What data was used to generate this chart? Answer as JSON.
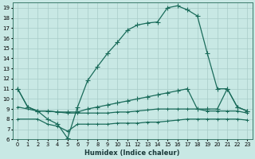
{
  "xlabel": "Humidex (Indice chaleur)",
  "ylabel": "",
  "background_color": "#c8e8e4",
  "grid_color": "#a8ccc8",
  "line_color": "#1a6b5a",
  "xlim": [
    -0.5,
    23.5
  ],
  "ylim": [
    6,
    19.5
  ],
  "xticks": [
    0,
    1,
    2,
    3,
    4,
    5,
    6,
    7,
    8,
    9,
    10,
    11,
    12,
    13,
    14,
    15,
    16,
    17,
    18,
    19,
    20,
    21,
    22,
    23
  ],
  "yticks": [
    6,
    7,
    8,
    9,
    10,
    11,
    12,
    13,
    14,
    15,
    16,
    17,
    18,
    19
  ],
  "curve_main_x": [
    0,
    1,
    2,
    3,
    4,
    5,
    6,
    7,
    8,
    9,
    10,
    11,
    12,
    13,
    14,
    15,
    16,
    17,
    18,
    19,
    20,
    21,
    22,
    23
  ],
  "curve_main_y": [
    11.0,
    9.2,
    8.8,
    8.0,
    7.5,
    6.1,
    9.2,
    11.8,
    13.2,
    14.5,
    15.6,
    16.8,
    17.3,
    17.5,
    17.6,
    19.0,
    19.2,
    18.8,
    18.2,
    14.5,
    11.0,
    11.0,
    9.2,
    8.8
  ],
  "curve_b_x": [
    0,
    1,
    2,
    3,
    4,
    5,
    6,
    7,
    8,
    9,
    10,
    11,
    12,
    13,
    14,
    15,
    16,
    17,
    18,
    19,
    20,
    21,
    22,
    23
  ],
  "curve_b_y": [
    11.0,
    9.2,
    8.8,
    8.8,
    8.7,
    8.7,
    8.7,
    9.0,
    9.2,
    9.4,
    9.6,
    9.8,
    10.0,
    10.2,
    10.4,
    10.6,
    10.8,
    11.0,
    9.0,
    9.0,
    9.0,
    11.0,
    9.2,
    8.8
  ],
  "curve_c_x": [
    0,
    2,
    3,
    4,
    5,
    6,
    7,
    8,
    9,
    10,
    11,
    12,
    13,
    14,
    15,
    16,
    17,
    18,
    19,
    20,
    21,
    22,
    23
  ],
  "curve_c_y": [
    9.2,
    8.8,
    8.8,
    8.7,
    8.6,
    8.6,
    8.6,
    8.6,
    8.6,
    8.7,
    8.7,
    8.8,
    8.9,
    9.0,
    9.0,
    9.0,
    9.0,
    9.0,
    8.8,
    8.8,
    8.8,
    8.8,
    8.6
  ],
  "curve_d_x": [
    0,
    2,
    3,
    4,
    5,
    6,
    7,
    8,
    9,
    10,
    11,
    12,
    13,
    14,
    15,
    16,
    17,
    18,
    19,
    20,
    21,
    22,
    23
  ],
  "curve_d_y": [
    8.0,
    8.0,
    7.5,
    7.3,
    6.8,
    7.5,
    7.5,
    7.5,
    7.5,
    7.6,
    7.6,
    7.6,
    7.7,
    7.7,
    7.8,
    7.9,
    8.0,
    8.0,
    8.0,
    8.0,
    8.0,
    8.0,
    7.9
  ]
}
